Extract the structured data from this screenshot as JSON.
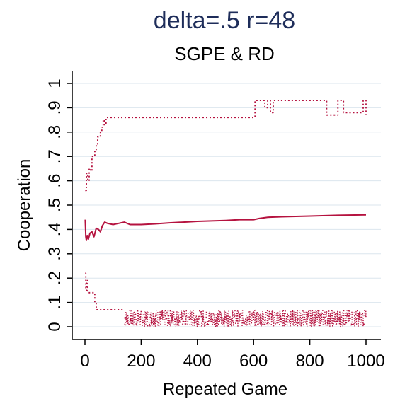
{
  "chart_data": {
    "type": "line",
    "title": "delta=.5 r=48",
    "subtitle": "SGPE & RD",
    "xlabel": "Repeated Game",
    "ylabel": "Cooperation",
    "xlim": [
      0,
      1000
    ],
    "ylim": [
      0,
      1
    ],
    "xticks": [
      "0",
      "200",
      "400",
      "600",
      "800",
      "1000"
    ],
    "yticks": [
      "0",
      ".1",
      ".2",
      ".3",
      ".4",
      ".5",
      ".6",
      ".7",
      ".8",
      ".9",
      "1"
    ],
    "grid": true,
    "colors": {
      "series": "#b5123f",
      "title": "#1e2d5a",
      "grid": "#dbe6ee"
    },
    "series": [
      {
        "style": "solid",
        "x": [
          1,
          3,
          5,
          8,
          12,
          18,
          25,
          32,
          40,
          48,
          55,
          62,
          70,
          80,
          100,
          120,
          140,
          160,
          200,
          250,
          300,
          350,
          400,
          450,
          500,
          550,
          600,
          620,
          650,
          700,
          800,
          900,
          1000
        ],
        "y": [
          0.44,
          0.37,
          0.355,
          0.375,
          0.36,
          0.385,
          0.39,
          0.37,
          0.405,
          0.4,
          0.39,
          0.415,
          0.43,
          0.425,
          0.42,
          0.425,
          0.43,
          0.42,
          0.42,
          0.423,
          0.427,
          0.43,
          0.433,
          0.435,
          0.437,
          0.44,
          0.44,
          0.445,
          0.45,
          0.452,
          0.455,
          0.458,
          0.46
        ]
      },
      {
        "style": "dotted",
        "x": [
          1,
          5,
          10,
          15,
          20,
          25,
          30,
          35,
          40,
          45,
          50,
          55,
          60,
          65,
          70,
          75,
          80,
          100,
          200,
          300,
          400,
          500,
          600,
          605,
          620,
          640,
          650,
          660,
          670,
          680,
          850,
          860,
          900,
          920,
          990,
          1000
        ],
        "y": [
          0.56,
          0.63,
          0.6,
          0.65,
          0.64,
          0.7,
          0.7,
          0.72,
          0.75,
          0.78,
          0.78,
          0.8,
          0.82,
          0.85,
          0.83,
          0.86,
          0.86,
          0.86,
          0.86,
          0.86,
          0.86,
          0.86,
          0.86,
          0.93,
          0.93,
          0.9,
          0.93,
          0.88,
          0.93,
          0.93,
          0.93,
          0.87,
          0.93,
          0.88,
          0.93,
          0.87
        ]
      },
      {
        "style": "dotted",
        "x": [
          1,
          3,
          6,
          10,
          15,
          20,
          25,
          30,
          35,
          40,
          60,
          100,
          140
        ],
        "y": [
          0.22,
          0.15,
          0.19,
          0.14,
          0.14,
          0.14,
          0.14,
          0.14,
          0.1,
          0.07,
          0.07,
          0.07,
          0.07
        ]
      },
      {
        "style": "band",
        "x": [
          140,
          1000
        ],
        "y": [
          0.0,
          0.07
        ]
      }
    ]
  }
}
